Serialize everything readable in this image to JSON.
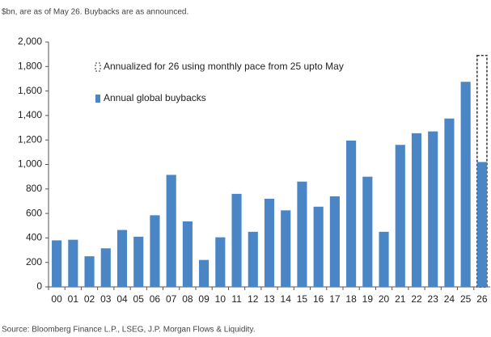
{
  "chart_data": {
    "type": "bar",
    "subtitle": "$bn, are as of May 26. Buybacks are as announced.",
    "source": "Source: Bloomberg Finance L.P., LSEG, J.P. Morgan Flows & Liquidity.",
    "categories": [
      "00",
      "01",
      "02",
      "03",
      "04",
      "05",
      "06",
      "07",
      "08",
      "09",
      "10",
      "11",
      "12",
      "13",
      "14",
      "15",
      "16",
      "17",
      "18",
      "19",
      "20",
      "21",
      "22",
      "23",
      "24",
      "25",
      "26"
    ],
    "series": [
      {
        "name": "Annualized for 26 using monthly pace from 25 upto May",
        "color": "#333333",
        "style": "dashed",
        "values": [
          null,
          null,
          null,
          null,
          null,
          null,
          null,
          null,
          null,
          null,
          null,
          null,
          null,
          null,
          null,
          null,
          null,
          null,
          null,
          null,
          null,
          null,
          null,
          null,
          null,
          null,
          1890
        ]
      },
      {
        "name": "Annual global buybacks",
        "color": "#4a86c5",
        "values": [
          380,
          385,
          250,
          315,
          465,
          410,
          585,
          915,
          535,
          220,
          405,
          760,
          450,
          720,
          625,
          860,
          655,
          740,
          1195,
          900,
          450,
          1160,
          1255,
          1270,
          1375,
          1675,
          1020
        ]
      }
    ],
    "ylim": [
      0,
      2000
    ],
    "yticks": [
      0,
      200,
      400,
      600,
      800,
      {
        "value": 1000,
        "label": "1,000"
      },
      {
        "value": 1200,
        "label": "1,200"
      },
      {
        "value": 1400,
        "label": "1,400"
      },
      {
        "value": 1600,
        "label": "1,600"
      },
      {
        "value": 1800,
        "label": "1,800"
      },
      {
        "value": 2000,
        "label": "2,000"
      }
    ],
    "grid": false,
    "legend": "top-left"
  }
}
